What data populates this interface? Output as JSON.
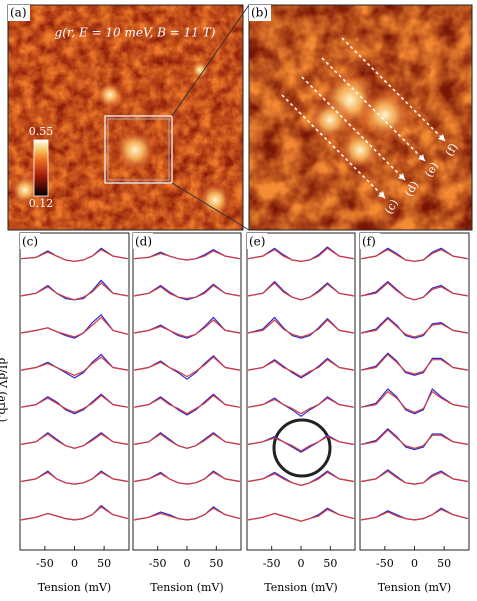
{
  "chart_data": [
    {
      "type": "map",
      "panel": "(a)",
      "title": "g(r, E = 10 meV, B = 11 T)",
      "clim": [
        0.12,
        0.55
      ],
      "cticks": [
        0.55,
        0.12
      ]
    },
    {
      "type": "map",
      "panel": "(b)",
      "arrow_labels": [
        "(c)",
        "(d)",
        "(e)",
        "(f)"
      ]
    },
    {
      "type": "line",
      "panel": "(c)",
      "ylabel": "dI/dV (arb.)",
      "xlabel": "Tension (mV)",
      "xlim": [
        -92,
        92
      ],
      "xticks": [
        -50,
        0,
        50
      ],
      "ylim": [
        0,
        2
      ],
      "x": [
        -90,
        -65,
        -45,
        -30,
        -15,
        0,
        15,
        30,
        45,
        65,
        90
      ],
      "series": [
        {
          "color": "#2b2bd6",
          "values": [
            0.9,
            0.95,
            1.2,
            1.0,
            0.85,
            0.8,
            0.85,
            1.0,
            1.3,
            1.0,
            0.9
          ]
        },
        {
          "color": "#d63a3a",
          "values": [
            0.9,
            0.95,
            1.15,
            1.0,
            0.85,
            0.8,
            0.85,
            1.0,
            1.25,
            1.0,
            0.9
          ]
        },
        {
          "color": "#2b2bd6",
          "values": [
            0.9,
            1.0,
            1.3,
            1.0,
            0.8,
            0.75,
            0.8,
            1.1,
            1.5,
            1.0,
            0.9
          ]
        },
        {
          "color": "#d63a3a",
          "values": [
            0.9,
            1.0,
            1.25,
            1.0,
            0.85,
            0.75,
            0.85,
            1.05,
            1.4,
            1.0,
            0.9
          ]
        },
        {
          "color": "#2b2bd6",
          "values": [
            0.9,
            1.0,
            1.1,
            0.95,
            0.8,
            0.7,
            0.9,
            1.3,
            1.6,
            1.0,
            0.85
          ]
        },
        {
          "color": "#d63a3a",
          "values": [
            0.9,
            1.0,
            1.1,
            0.95,
            0.85,
            0.75,
            0.9,
            1.2,
            1.5,
            1.0,
            0.85
          ]
        },
        {
          "color": "#2b2bd6",
          "values": [
            0.9,
            1.0,
            1.2,
            1.0,
            0.8,
            0.6,
            0.8,
            1.2,
            1.5,
            1.0,
            0.9
          ]
        },
        {
          "color": "#d63a3a",
          "values": [
            0.9,
            1.0,
            1.15,
            1.0,
            0.85,
            0.7,
            0.85,
            1.15,
            1.4,
            1.0,
            0.9
          ]
        },
        {
          "color": "#2b2bd6",
          "values": [
            0.9,
            1.0,
            1.3,
            1.1,
            0.8,
            0.65,
            0.8,
            1.1,
            1.4,
            1.0,
            0.9
          ]
        },
        {
          "color": "#d63a3a",
          "values": [
            0.9,
            1.0,
            1.25,
            1.05,
            0.85,
            0.7,
            0.85,
            1.05,
            1.35,
            1.0,
            0.9
          ]
        },
        {
          "color": "#2b2bd6",
          "values": [
            0.9,
            1.0,
            1.35,
            1.1,
            0.85,
            0.75,
            0.85,
            1.1,
            1.35,
            1.0,
            0.9
          ]
        },
        {
          "color": "#d63a3a",
          "values": [
            0.9,
            1.0,
            1.3,
            1.05,
            0.85,
            0.75,
            0.85,
            1.05,
            1.3,
            1.0,
            0.9
          ]
        },
        {
          "color": "#2b2bd6",
          "values": [
            0.9,
            1.0,
            1.3,
            1.0,
            0.85,
            0.8,
            0.85,
            1.0,
            1.3,
            1.0,
            0.9
          ]
        },
        {
          "color": "#d63a3a",
          "values": [
            0.9,
            1.0,
            1.25,
            1.0,
            0.85,
            0.8,
            0.85,
            1.0,
            1.25,
            1.0,
            0.9
          ]
        },
        {
          "color": "#2b2bd6",
          "values": [
            0.85,
            0.95,
            1.1,
            1.0,
            0.9,
            0.85,
            0.9,
            1.05,
            1.4,
            1.05,
            0.9
          ]
        },
        {
          "color": "#d63a3a",
          "values": [
            0.85,
            0.95,
            1.1,
            1.0,
            0.9,
            0.85,
            0.9,
            1.05,
            1.35,
            1.05,
            0.9
          ]
        }
      ]
    },
    {
      "type": "line",
      "panel": "(d)",
      "xlabel": "Tension (mV)",
      "xlim": [
        -92,
        92
      ],
      "xticks": [
        -50,
        0,
        50
      ],
      "ylim": [
        0,
        2
      ],
      "x": [
        -90,
        -65,
        -45,
        -30,
        -15,
        0,
        15,
        30,
        45,
        65,
        90
      ],
      "series": [
        {
          "color": "#2b2bd6",
          "values": [
            0.9,
            0.95,
            1.15,
            1.0,
            0.9,
            0.85,
            0.9,
            1.05,
            1.25,
            1.0,
            0.9
          ]
        },
        {
          "color": "#d63a3a",
          "values": [
            0.9,
            0.95,
            1.1,
            1.0,
            0.9,
            0.85,
            0.9,
            1.0,
            1.2,
            1.0,
            0.9
          ]
        },
        {
          "color": "#2b2bd6",
          "values": [
            0.9,
            1.0,
            1.3,
            1.05,
            0.85,
            0.75,
            0.85,
            1.05,
            1.35,
            1.0,
            0.9
          ]
        },
        {
          "color": "#d63a3a",
          "values": [
            0.9,
            1.0,
            1.25,
            1.0,
            0.85,
            0.8,
            0.85,
            1.0,
            1.3,
            1.0,
            0.9
          ]
        },
        {
          "color": "#2b2bd6",
          "values": [
            0.9,
            1.0,
            1.2,
            1.0,
            0.8,
            0.7,
            0.85,
            1.15,
            1.5,
            1.0,
            0.9
          ]
        },
        {
          "color": "#d63a3a",
          "values": [
            0.9,
            1.0,
            1.15,
            1.0,
            0.85,
            0.75,
            0.85,
            1.1,
            1.4,
            1.0,
            0.9
          ]
        },
        {
          "color": "#2b2bd6",
          "values": [
            0.9,
            1.0,
            1.25,
            1.0,
            0.8,
            0.55,
            0.8,
            1.15,
            1.45,
            1.0,
            0.9
          ]
        },
        {
          "color": "#d63a3a",
          "values": [
            0.9,
            1.0,
            1.2,
            1.0,
            0.85,
            0.65,
            0.85,
            1.1,
            1.4,
            1.0,
            0.9
          ]
        },
        {
          "color": "#2b2bd6",
          "values": [
            0.9,
            1.0,
            1.3,
            1.05,
            0.8,
            0.6,
            0.8,
            1.1,
            1.4,
            1.0,
            0.9
          ]
        },
        {
          "color": "#d63a3a",
          "values": [
            0.9,
            1.0,
            1.25,
            1.0,
            0.85,
            0.65,
            0.85,
            1.05,
            1.35,
            1.0,
            0.9
          ]
        },
        {
          "color": "#2b2bd6",
          "values": [
            0.9,
            1.0,
            1.35,
            1.1,
            0.85,
            0.75,
            0.85,
            1.1,
            1.35,
            1.0,
            0.9
          ]
        },
        {
          "color": "#d63a3a",
          "values": [
            0.9,
            1.0,
            1.3,
            1.05,
            0.85,
            0.75,
            0.85,
            1.05,
            1.3,
            1.0,
            0.9
          ]
        },
        {
          "color": "#2b2bd6",
          "values": [
            0.9,
            1.0,
            1.25,
            1.0,
            0.85,
            0.8,
            0.85,
            1.0,
            1.3,
            1.0,
            0.9
          ]
        },
        {
          "color": "#d63a3a",
          "values": [
            0.9,
            1.0,
            1.2,
            1.0,
            0.85,
            0.8,
            0.85,
            1.0,
            1.25,
            1.0,
            0.9
          ]
        },
        {
          "color": "#2b2bd6",
          "values": [
            0.85,
            0.95,
            1.15,
            1.05,
            0.9,
            0.85,
            0.9,
            1.05,
            1.35,
            1.05,
            0.9
          ]
        },
        {
          "color": "#d63a3a",
          "values": [
            0.85,
            0.95,
            1.1,
            1.0,
            0.9,
            0.85,
            0.9,
            1.05,
            1.3,
            1.05,
            0.9
          ]
        }
      ]
    },
    {
      "type": "line",
      "panel": "(e)",
      "xlabel": "Tension (mV)",
      "xlim": [
        -92,
        92
      ],
      "xticks": [
        -50,
        0,
        50
      ],
      "ylim": [
        0,
        2
      ],
      "x": [
        -90,
        -65,
        -45,
        -30,
        -15,
        0,
        15,
        30,
        45,
        65,
        90
      ],
      "series": [
        {
          "color": "#2b2bd6",
          "values": [
            0.9,
            1.0,
            1.3,
            1.05,
            0.85,
            0.8,
            0.85,
            1.05,
            1.35,
            1.0,
            0.9
          ]
        },
        {
          "color": "#d63a3a",
          "values": [
            0.9,
            1.0,
            1.25,
            1.0,
            0.85,
            0.8,
            0.85,
            1.0,
            1.3,
            1.0,
            0.9
          ]
        },
        {
          "color": "#2b2bd6",
          "values": [
            0.9,
            1.0,
            1.45,
            1.1,
            0.85,
            0.75,
            0.85,
            1.1,
            1.4,
            1.0,
            0.9
          ]
        },
        {
          "color": "#d63a3a",
          "values": [
            0.9,
            1.0,
            1.4,
            1.05,
            0.85,
            0.75,
            0.85,
            1.05,
            1.35,
            1.0,
            0.9
          ]
        },
        {
          "color": "#2b2bd6",
          "values": [
            0.9,
            1.05,
            1.5,
            1.1,
            0.8,
            0.7,
            0.8,
            1.1,
            1.45,
            1.0,
            0.9
          ]
        },
        {
          "color": "#d63a3a",
          "values": [
            0.9,
            1.0,
            1.4,
            1.05,
            0.85,
            0.75,
            0.85,
            1.05,
            1.4,
            1.0,
            0.9
          ]
        },
        {
          "color": "#2b2bd6",
          "values": [
            0.9,
            1.0,
            1.3,
            1.05,
            0.8,
            0.6,
            0.8,
            1.05,
            1.35,
            1.0,
            0.9
          ]
        },
        {
          "color": "#d63a3a",
          "values": [
            0.9,
            1.0,
            1.25,
            1.0,
            0.85,
            0.65,
            0.85,
            1.0,
            1.3,
            1.0,
            0.9
          ]
        },
        {
          "color": "#2b2bd6",
          "values": [
            0.9,
            1.0,
            1.25,
            1.0,
            0.8,
            0.55,
            0.8,
            1.0,
            1.3,
            1.0,
            0.9
          ]
        },
        {
          "color": "#d63a3a",
          "values": [
            0.9,
            1.0,
            1.2,
            1.0,
            0.85,
            0.65,
            0.85,
            1.0,
            1.25,
            1.0,
            0.9
          ]
        },
        {
          "color": "#2b2bd6",
          "values": [
            0.9,
            1.0,
            1.2,
            1.0,
            0.8,
            0.6,
            0.8,
            1.0,
            1.25,
            1.0,
            0.9
          ]
        },
        {
          "color": "#d63a3a",
          "values": [
            0.9,
            1.0,
            1.15,
            1.0,
            0.85,
            0.65,
            0.85,
            1.0,
            1.2,
            1.0,
            0.9
          ]
        },
        {
          "color": "#2b2bd6",
          "values": [
            0.9,
            1.0,
            1.25,
            1.05,
            0.85,
            0.75,
            0.85,
            1.05,
            1.3,
            1.0,
            0.9
          ]
        },
        {
          "color": "#d63a3a",
          "values": [
            0.9,
            1.0,
            1.2,
            1.0,
            0.85,
            0.75,
            0.85,
            1.0,
            1.25,
            1.0,
            0.9
          ]
        },
        {
          "color": "#2b2bd6",
          "values": [
            0.85,
            0.95,
            1.1,
            1.0,
            0.9,
            0.8,
            0.9,
            1.05,
            1.3,
            1.05,
            0.9
          ]
        },
        {
          "color": "#d63a3a",
          "values": [
            0.85,
            0.95,
            1.1,
            1.0,
            0.9,
            0.8,
            0.9,
            1.0,
            1.25,
            1.05,
            0.9
          ]
        }
      ]
    },
    {
      "type": "line",
      "panel": "(f)",
      "xlabel": "Tension (mV)",
      "xlim": [
        -92,
        92
      ],
      "xticks": [
        -50,
        0,
        50
      ],
      "ylim": [
        0,
        2
      ],
      "x": [
        -90,
        -65,
        -45,
        -30,
        -15,
        0,
        15,
        30,
        45,
        65,
        90
      ],
      "series": [
        {
          "color": "#2b2bd6",
          "values": [
            0.9,
            1.0,
            1.3,
            1.1,
            0.85,
            0.8,
            0.85,
            1.15,
            1.3,
            1.0,
            0.9
          ]
        },
        {
          "color": "#d63a3a",
          "values": [
            0.9,
            1.0,
            1.25,
            1.05,
            0.85,
            0.8,
            0.85,
            1.1,
            1.25,
            1.0,
            0.9
          ]
        },
        {
          "color": "#2b2bd6",
          "values": [
            0.9,
            1.05,
            1.45,
            1.15,
            0.85,
            0.75,
            0.85,
            1.2,
            1.3,
            1.0,
            0.9
          ]
        },
        {
          "color": "#d63a3a",
          "values": [
            0.9,
            1.0,
            1.4,
            1.1,
            0.85,
            0.75,
            0.85,
            1.15,
            1.25,
            1.0,
            0.9
          ]
        },
        {
          "color": "#2b2bd6",
          "values": [
            0.9,
            1.05,
            1.5,
            1.2,
            0.8,
            0.7,
            0.8,
            1.25,
            1.3,
            1.0,
            0.9
          ]
        },
        {
          "color": "#d63a3a",
          "values": [
            0.9,
            1.0,
            1.45,
            1.15,
            0.85,
            0.75,
            0.85,
            1.2,
            1.25,
            1.0,
            0.9
          ]
        },
        {
          "color": "#2b2bd6",
          "values": [
            0.9,
            1.05,
            1.55,
            1.25,
            0.8,
            0.7,
            0.8,
            1.35,
            1.35,
            1.0,
            0.9
          ]
        },
        {
          "color": "#d63a3a",
          "values": [
            0.9,
            1.0,
            1.5,
            1.2,
            0.85,
            0.75,
            0.85,
            1.3,
            1.3,
            1.0,
            0.9
          ]
        },
        {
          "color": "#2b2bd6",
          "values": [
            0.9,
            1.05,
            1.6,
            1.3,
            0.8,
            0.65,
            0.8,
            1.6,
            1.3,
            1.0,
            0.9
          ]
        },
        {
          "color": "#d63a3a",
          "values": [
            0.9,
            1.0,
            1.5,
            1.25,
            0.85,
            0.7,
            0.85,
            1.5,
            1.25,
            1.0,
            0.9
          ]
        },
        {
          "color": "#2b2bd6",
          "values": [
            0.9,
            1.05,
            1.5,
            1.2,
            0.8,
            0.7,
            0.8,
            1.3,
            1.3,
            1.0,
            0.9
          ]
        },
        {
          "color": "#d63a3a",
          "values": [
            0.9,
            1.0,
            1.45,
            1.15,
            0.85,
            0.75,
            0.85,
            1.25,
            1.25,
            1.0,
            0.9
          ]
        },
        {
          "color": "#2b2bd6",
          "values": [
            0.9,
            1.0,
            1.35,
            1.1,
            0.85,
            0.8,
            0.85,
            1.15,
            1.3,
            1.0,
            0.9
          ]
        },
        {
          "color": "#d63a3a",
          "values": [
            0.9,
            1.0,
            1.3,
            1.05,
            0.85,
            0.8,
            0.85,
            1.1,
            1.25,
            1.0,
            0.9
          ]
        },
        {
          "color": "#2b2bd6",
          "values": [
            0.85,
            0.95,
            1.2,
            1.05,
            0.9,
            0.85,
            0.9,
            1.05,
            1.3,
            1.05,
            0.9
          ]
        },
        {
          "color": "#d63a3a",
          "values": [
            0.85,
            0.95,
            1.15,
            1.0,
            0.9,
            0.85,
            0.9,
            1.05,
            1.25,
            1.05,
            0.9
          ]
        }
      ]
    }
  ]
}
